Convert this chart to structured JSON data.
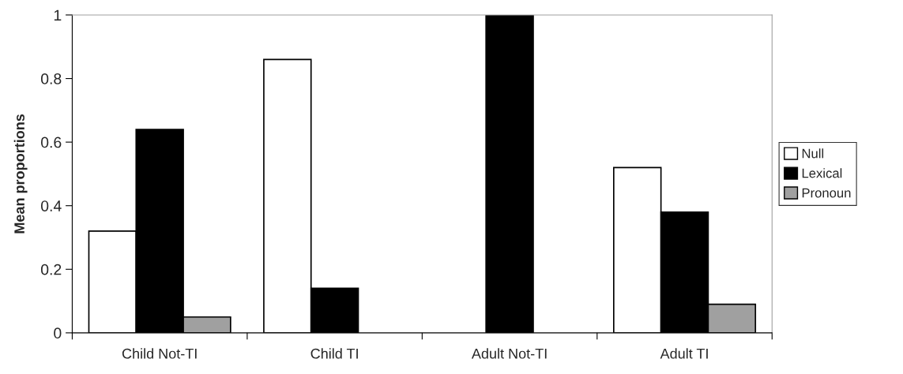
{
  "chart_data": {
    "type": "bar",
    "ylabel": "Mean proportions",
    "categories": [
      "Child Not-TI",
      "Child TI",
      "Adult Not-TI",
      "Adult TI"
    ],
    "series": [
      {
        "name": "Null",
        "color": "#ffffff",
        "values": [
          0.32,
          0.86,
          0,
          0.52
        ]
      },
      {
        "name": "Lexical",
        "color": "#000000",
        "values": [
          0.64,
          0.14,
          1.0,
          0.38
        ]
      },
      {
        "name": "Pronoun",
        "color": "#a0a0a0",
        "values": [
          0.05,
          0,
          0,
          0.09
        ]
      }
    ],
    "ylim": [
      0,
      1
    ],
    "yticks": [
      0,
      0.2,
      0.4,
      0.6,
      0.8,
      1
    ],
    "grid": false,
    "legend": "right"
  }
}
